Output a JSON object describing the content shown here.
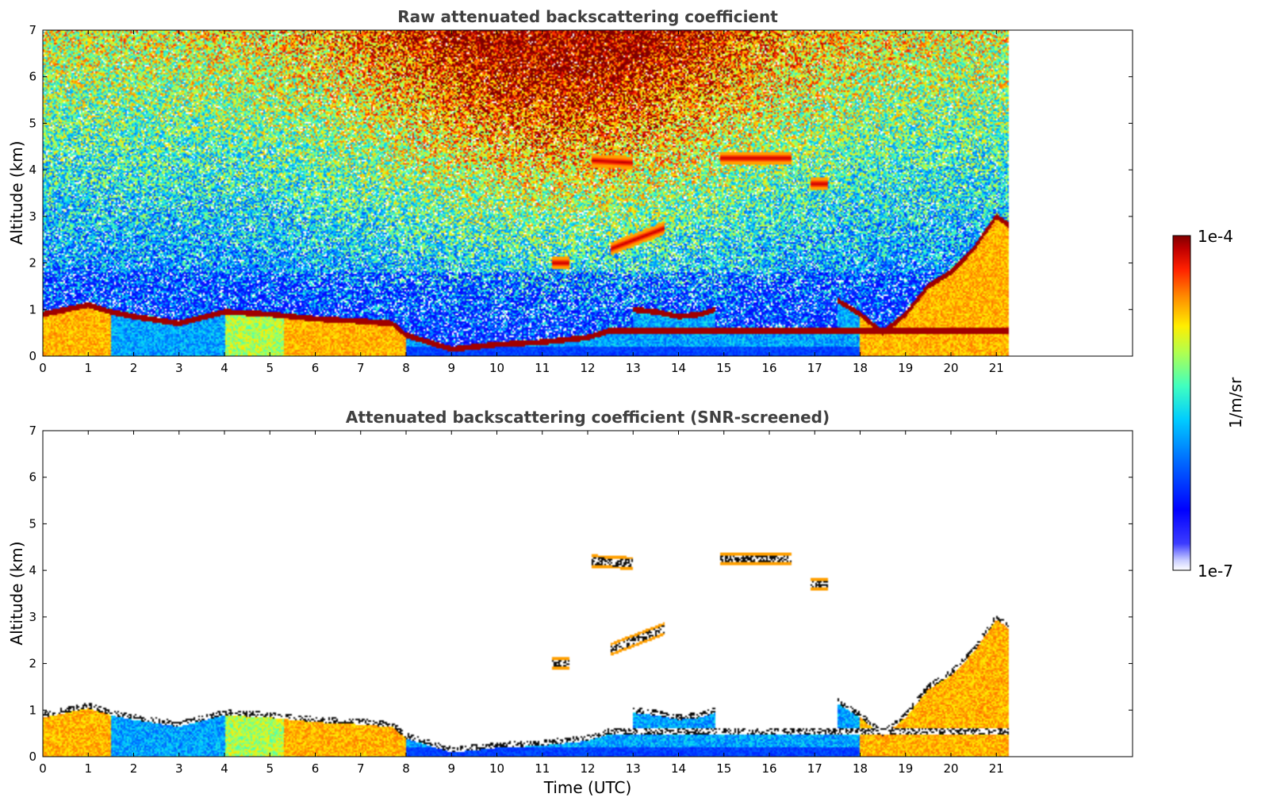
{
  "chart_data": [
    {
      "type": "heatmap",
      "title": "Raw attenuated backscattering coefficient",
      "xlabel": "",
      "ylabel": "Altitude (km)",
      "xlim": [
        0,
        24
      ],
      "ylim": [
        0,
        7
      ],
      "x_ticks": [
        "0",
        "1",
        "2",
        "3",
        "4",
        "5",
        "6",
        "7",
        "8",
        "9",
        "10",
        "11",
        "12",
        "13",
        "14",
        "15",
        "16",
        "17",
        "18",
        "19",
        "20",
        "21"
      ],
      "y_ticks": [
        "0",
        "1",
        "2",
        "3",
        "4",
        "5",
        "6",
        "7"
      ],
      "data_end_time": 21.3,
      "screened": false,
      "features": [
        {
          "name": "boundary layer top",
          "x": [
            0,
            0.5,
            1,
            1.5,
            2,
            3,
            4,
            5,
            6,
            7,
            7.7,
            8,
            8.5,
            9,
            10,
            11,
            12,
            12.5
          ],
          "y": [
            0.9,
            1.0,
            1.1,
            0.95,
            0.85,
            0.7,
            0.95,
            0.9,
            0.8,
            0.75,
            0.7,
            0.45,
            0.3,
            0.15,
            0.25,
            0.3,
            0.4,
            0.55
          ]
        },
        {
          "name": "mid-level layer 13-15h",
          "x": [
            13,
            13.5,
            14,
            14.5,
            14.8
          ],
          "y": [
            1.0,
            0.95,
            0.85,
            0.9,
            1.0
          ]
        },
        {
          "name": "evening layer",
          "x": [
            17.5,
            18,
            18.5,
            19,
            19.5,
            20,
            20.5,
            21,
            21.3
          ],
          "y": [
            1.2,
            0.9,
            0.5,
            0.9,
            1.5,
            1.8,
            2.3,
            3.0,
            2.8
          ]
        },
        {
          "name": "cloud 12h",
          "x": [
            12.1,
            13.0
          ],
          "y": [
            4.2,
            4.15
          ]
        },
        {
          "name": "cloud 15-16h",
          "x": [
            14.9,
            16.5
          ],
          "y": [
            4.25,
            4.25
          ]
        },
        {
          "name": "cloud 17h",
          "x": [
            16.9,
            17.3
          ],
          "y": [
            3.7,
            3.7
          ]
        },
        {
          "name": "cloud 13h",
          "x": [
            12.5,
            13.7
          ],
          "y": [
            2.3,
            2.75
          ]
        },
        {
          "name": "cloud 11h",
          "x": [
            11.2,
            11.6
          ],
          "y": [
            2.0,
            2.0
          ]
        }
      ]
    },
    {
      "type": "heatmap",
      "title": "Attenuated backscattering coefficient (SNR-screened)",
      "xlabel": "Time (UTC)",
      "ylabel": "Altitude (km)",
      "xlim": [
        0,
        24
      ],
      "ylim": [
        0,
        7
      ],
      "x_ticks": [
        "0",
        "1",
        "2",
        "3",
        "4",
        "5",
        "6",
        "7",
        "8",
        "9",
        "10",
        "11",
        "12",
        "13",
        "14",
        "15",
        "16",
        "17",
        "18",
        "19",
        "20",
        "21"
      ],
      "y_ticks": [
        "0",
        "1",
        "2",
        "3",
        "4",
        "5",
        "6",
        "7"
      ],
      "data_end_time": 21.3,
      "screened": true
    }
  ],
  "colorbar": {
    "label": "1/m/sr",
    "max_label": "1e-4",
    "min_label": "1e-7",
    "scale": "log",
    "colors": [
      "#ffffff",
      "#b8c0ff",
      "#5a6bff",
      "#0000ff",
      "#0070ff",
      "#00d0ff",
      "#60ffb0",
      "#c0ff40",
      "#ffee00",
      "#ff8800",
      "#ff2000",
      "#c00000",
      "#800000"
    ]
  }
}
